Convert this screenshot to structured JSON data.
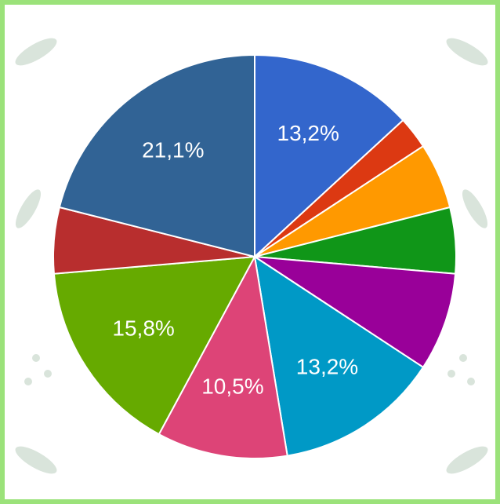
{
  "chart_data": {
    "type": "pie",
    "values": [
      13.2,
      2.6,
      5.3,
      5.3,
      7.9,
      13.2,
      10.5,
      15.8,
      5.3,
      21.1
    ],
    "value_labels": [
      "13,2%",
      null,
      null,
      null,
      null,
      "13,2%",
      "10,5%",
      "15,8%",
      null,
      "21,1%"
    ],
    "colors": [
      "#3366cc",
      "#dc3912",
      "#ff9900",
      "#109618",
      "#990099",
      "#0099c6",
      "#dd4477",
      "#66aa00",
      "#b82e2e",
      "#316395"
    ],
    "start_angle": 90
  }
}
